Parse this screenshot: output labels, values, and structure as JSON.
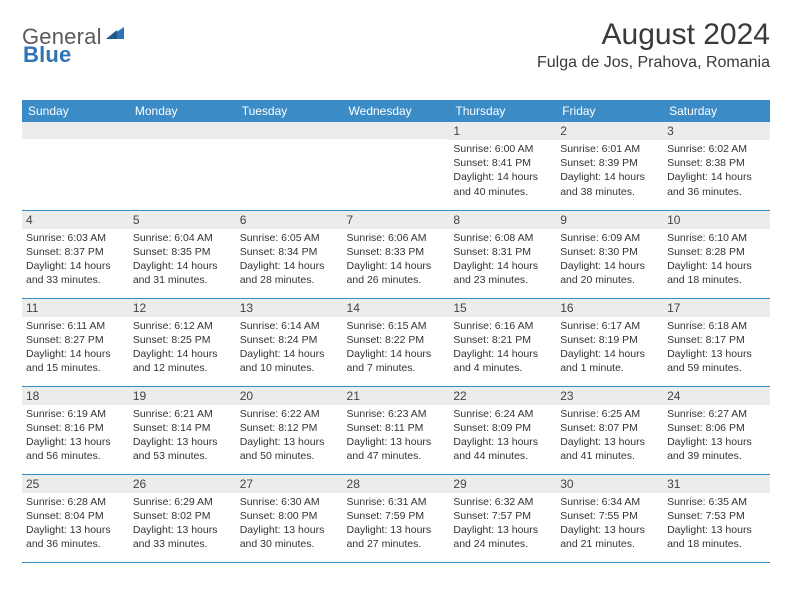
{
  "header": {
    "logo": {
      "general": "General",
      "blue": "Blue"
    },
    "title": "August 2024",
    "location": "Fulga de Jos, Prahova, Romania"
  },
  "colors": {
    "header_bg": "#3b8bc6",
    "header_text": "#ffffff",
    "daynum_bg": "#ececec",
    "border": "#3b8bc6",
    "page_bg": "#ffffff",
    "body_text": "#333333",
    "title_text": "#3a3a3a",
    "logo_gray": "#5a5a5a",
    "logo_blue": "#2f75b5"
  },
  "calendar": {
    "day_names": [
      "Sunday",
      "Monday",
      "Tuesday",
      "Wednesday",
      "Thursday",
      "Friday",
      "Saturday"
    ],
    "weeks": [
      [
        null,
        null,
        null,
        null,
        {
          "n": "1",
          "sr": "Sunrise: 6:00 AM",
          "ss": "Sunset: 8:41 PM",
          "dl1": "Daylight: 14 hours",
          "dl2": "and 40 minutes."
        },
        {
          "n": "2",
          "sr": "Sunrise: 6:01 AM",
          "ss": "Sunset: 8:39 PM",
          "dl1": "Daylight: 14 hours",
          "dl2": "and 38 minutes."
        },
        {
          "n": "3",
          "sr": "Sunrise: 6:02 AM",
          "ss": "Sunset: 8:38 PM",
          "dl1": "Daylight: 14 hours",
          "dl2": "and 36 minutes."
        }
      ],
      [
        {
          "n": "4",
          "sr": "Sunrise: 6:03 AM",
          "ss": "Sunset: 8:37 PM",
          "dl1": "Daylight: 14 hours",
          "dl2": "and 33 minutes."
        },
        {
          "n": "5",
          "sr": "Sunrise: 6:04 AM",
          "ss": "Sunset: 8:35 PM",
          "dl1": "Daylight: 14 hours",
          "dl2": "and 31 minutes."
        },
        {
          "n": "6",
          "sr": "Sunrise: 6:05 AM",
          "ss": "Sunset: 8:34 PM",
          "dl1": "Daylight: 14 hours",
          "dl2": "and 28 minutes."
        },
        {
          "n": "7",
          "sr": "Sunrise: 6:06 AM",
          "ss": "Sunset: 8:33 PM",
          "dl1": "Daylight: 14 hours",
          "dl2": "and 26 minutes."
        },
        {
          "n": "8",
          "sr": "Sunrise: 6:08 AM",
          "ss": "Sunset: 8:31 PM",
          "dl1": "Daylight: 14 hours",
          "dl2": "and 23 minutes."
        },
        {
          "n": "9",
          "sr": "Sunrise: 6:09 AM",
          "ss": "Sunset: 8:30 PM",
          "dl1": "Daylight: 14 hours",
          "dl2": "and 20 minutes."
        },
        {
          "n": "10",
          "sr": "Sunrise: 6:10 AM",
          "ss": "Sunset: 8:28 PM",
          "dl1": "Daylight: 14 hours",
          "dl2": "and 18 minutes."
        }
      ],
      [
        {
          "n": "11",
          "sr": "Sunrise: 6:11 AM",
          "ss": "Sunset: 8:27 PM",
          "dl1": "Daylight: 14 hours",
          "dl2": "and 15 minutes."
        },
        {
          "n": "12",
          "sr": "Sunrise: 6:12 AM",
          "ss": "Sunset: 8:25 PM",
          "dl1": "Daylight: 14 hours",
          "dl2": "and 12 minutes."
        },
        {
          "n": "13",
          "sr": "Sunrise: 6:14 AM",
          "ss": "Sunset: 8:24 PM",
          "dl1": "Daylight: 14 hours",
          "dl2": "and 10 minutes."
        },
        {
          "n": "14",
          "sr": "Sunrise: 6:15 AM",
          "ss": "Sunset: 8:22 PM",
          "dl1": "Daylight: 14 hours",
          "dl2": "and 7 minutes."
        },
        {
          "n": "15",
          "sr": "Sunrise: 6:16 AM",
          "ss": "Sunset: 8:21 PM",
          "dl1": "Daylight: 14 hours",
          "dl2": "and 4 minutes."
        },
        {
          "n": "16",
          "sr": "Sunrise: 6:17 AM",
          "ss": "Sunset: 8:19 PM",
          "dl1": "Daylight: 14 hours",
          "dl2": "and 1 minute."
        },
        {
          "n": "17",
          "sr": "Sunrise: 6:18 AM",
          "ss": "Sunset: 8:17 PM",
          "dl1": "Daylight: 13 hours",
          "dl2": "and 59 minutes."
        }
      ],
      [
        {
          "n": "18",
          "sr": "Sunrise: 6:19 AM",
          "ss": "Sunset: 8:16 PM",
          "dl1": "Daylight: 13 hours",
          "dl2": "and 56 minutes."
        },
        {
          "n": "19",
          "sr": "Sunrise: 6:21 AM",
          "ss": "Sunset: 8:14 PM",
          "dl1": "Daylight: 13 hours",
          "dl2": "and 53 minutes."
        },
        {
          "n": "20",
          "sr": "Sunrise: 6:22 AM",
          "ss": "Sunset: 8:12 PM",
          "dl1": "Daylight: 13 hours",
          "dl2": "and 50 minutes."
        },
        {
          "n": "21",
          "sr": "Sunrise: 6:23 AM",
          "ss": "Sunset: 8:11 PM",
          "dl1": "Daylight: 13 hours",
          "dl2": "and 47 minutes."
        },
        {
          "n": "22",
          "sr": "Sunrise: 6:24 AM",
          "ss": "Sunset: 8:09 PM",
          "dl1": "Daylight: 13 hours",
          "dl2": "and 44 minutes."
        },
        {
          "n": "23",
          "sr": "Sunrise: 6:25 AM",
          "ss": "Sunset: 8:07 PM",
          "dl1": "Daylight: 13 hours",
          "dl2": "and 41 minutes."
        },
        {
          "n": "24",
          "sr": "Sunrise: 6:27 AM",
          "ss": "Sunset: 8:06 PM",
          "dl1": "Daylight: 13 hours",
          "dl2": "and 39 minutes."
        }
      ],
      [
        {
          "n": "25",
          "sr": "Sunrise: 6:28 AM",
          "ss": "Sunset: 8:04 PM",
          "dl1": "Daylight: 13 hours",
          "dl2": "and 36 minutes."
        },
        {
          "n": "26",
          "sr": "Sunrise: 6:29 AM",
          "ss": "Sunset: 8:02 PM",
          "dl1": "Daylight: 13 hours",
          "dl2": "and 33 minutes."
        },
        {
          "n": "27",
          "sr": "Sunrise: 6:30 AM",
          "ss": "Sunset: 8:00 PM",
          "dl1": "Daylight: 13 hours",
          "dl2": "and 30 minutes."
        },
        {
          "n": "28",
          "sr": "Sunrise: 6:31 AM",
          "ss": "Sunset: 7:59 PM",
          "dl1": "Daylight: 13 hours",
          "dl2": "and 27 minutes."
        },
        {
          "n": "29",
          "sr": "Sunrise: 6:32 AM",
          "ss": "Sunset: 7:57 PM",
          "dl1": "Daylight: 13 hours",
          "dl2": "and 24 minutes."
        },
        {
          "n": "30",
          "sr": "Sunrise: 6:34 AM",
          "ss": "Sunset: 7:55 PM",
          "dl1": "Daylight: 13 hours",
          "dl2": "and 21 minutes."
        },
        {
          "n": "31",
          "sr": "Sunrise: 6:35 AM",
          "ss": "Sunset: 7:53 PM",
          "dl1": "Daylight: 13 hours",
          "dl2": "and 18 minutes."
        }
      ]
    ]
  }
}
